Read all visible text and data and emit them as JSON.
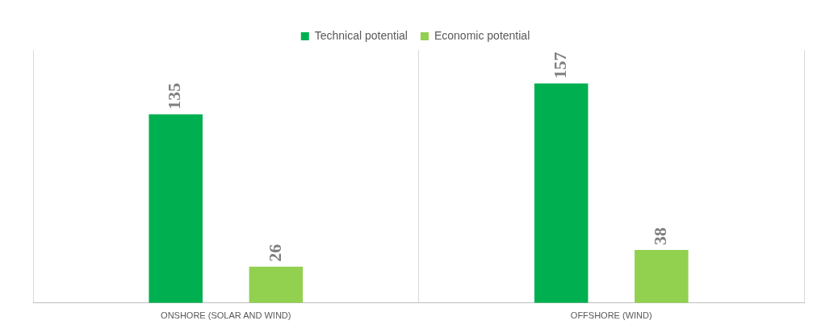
{
  "chart_data": {
    "type": "bar",
    "categories": [
      "ONSHORE (SOLAR AND WIND)",
      "OFFSHORE (WIND)"
    ],
    "series": [
      {
        "name": "Technical potential",
        "color": "#00b050",
        "values": [
          135,
          157
        ]
      },
      {
        "name": "Economic potential",
        "color": "#92d050",
        "values": [
          26,
          38
        ]
      }
    ],
    "ylim": [
      0,
      181
    ],
    "tick_labels": "x",
    "grid": "x",
    "legend": "top",
    "data_labels": true
  }
}
